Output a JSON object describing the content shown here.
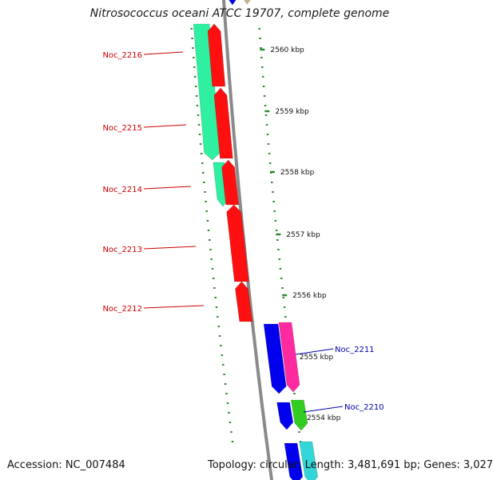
{
  "title": "Nitrosococcus oceani ATCC 19707, complete genome",
  "footer": {
    "accession": "Accession: NC_007484",
    "summary": "Topology: circular; Length: 3,481,691 bp; Genes: 3,027"
  },
  "colors": {
    "backbone": "#8a8a8a",
    "tick": "#2e8b2e",
    "label_red": "#cc0000",
    "label_blue": "#0000aa"
  },
  "scale_ticks": [
    "2560 kbp",
    "2559 kbp",
    "2558 kbp",
    "2557 kbp",
    "2556 kbp",
    "2555 kbp",
    "2554 kbp"
  ],
  "gene_labels_left": [
    "Noc_2216",
    "Noc_2215",
    "Noc_2214",
    "Noc_2213",
    "Noc_2212"
  ],
  "gene_labels_right": [
    "Noc_2211",
    "Noc_2210"
  ]
}
